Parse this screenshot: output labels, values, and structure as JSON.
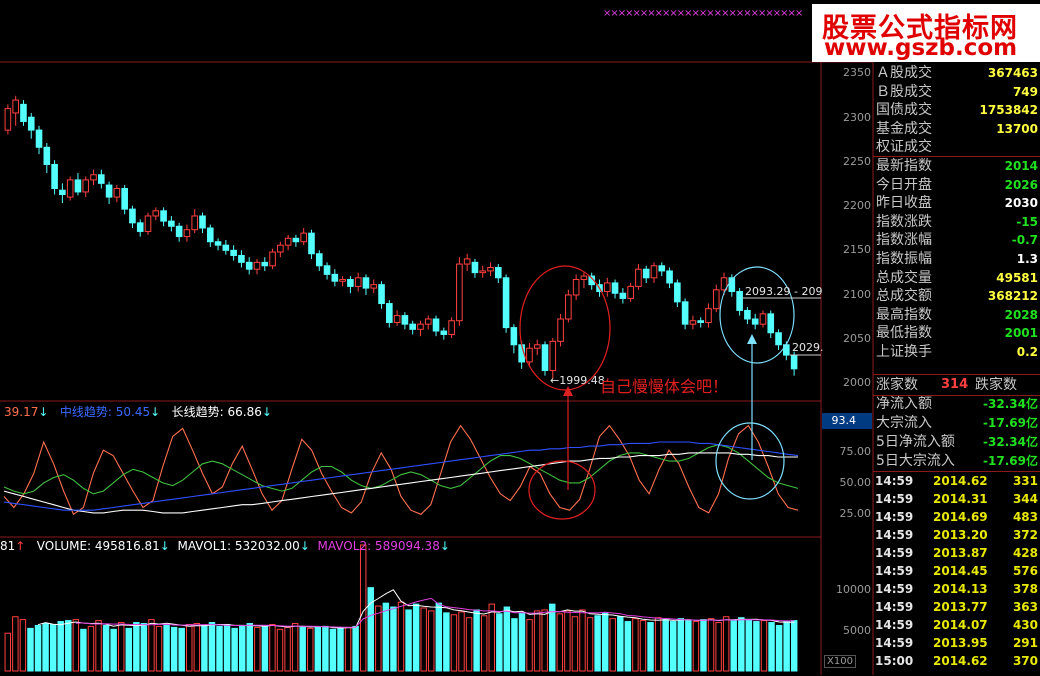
{
  "logo": {
    "line1": "股票公式指标网",
    "line2": "www.gszb.com"
  },
  "top_marker": "×××××××××××××××××××××××××××",
  "price_axis": [
    "2350",
    "2300",
    "2250",
    "2200",
    "2150",
    "2100",
    "2050",
    "2000"
  ],
  "oscillator_axis": [
    "75.00",
    "50.00",
    "25.00"
  ],
  "volume_axis": [
    "10000",
    "5000"
  ],
  "volume_unit": "X100",
  "oscillator_highlight": "93.4",
  "annotations": {
    "low_price": "1999.48",
    "high_range": "2093.29 - 209",
    "last_price": "2029.",
    "comment": "自己慢慢体会吧！"
  },
  "oscillator_labels": {
    "short_value": "39.17",
    "mid_name": "中线趋势:",
    "mid_value": "50.45",
    "long_name": "长线趋势:",
    "long_value": "66.86"
  },
  "volume_labels": {
    "prefix": "81",
    "volume": "VOLUME: 495816.81",
    "mavol1": "MAVOL1: 532032.00",
    "mavol2": "MAVOL2: 589094.38"
  },
  "colors": {
    "up": "#ff4040",
    "down": "#54ffff",
    "short_line": "#ff7050",
    "mid_line": "#40c040",
    "long_line": "#ffffff",
    "blue_line": "#3050ff",
    "magenta": "#e040e0",
    "yellow": "#ffff40",
    "green_val": "#20e020",
    "white_val": "#ffffff"
  },
  "info_panel": [
    {
      "label": "Ａ股成交",
      "value": "367463",
      "color": "#ffff40"
    },
    {
      "label": "Ｂ股成交",
      "value": "749",
      "color": "#ffff40"
    },
    {
      "label": "国债成交",
      "value": "1753842",
      "color": "#ffff40"
    },
    {
      "label": "基金成交",
      "value": "13700",
      "color": "#ffff40"
    },
    {
      "label": "权证成交",
      "value": "",
      "color": "#ffff40"
    },
    {
      "label": "最新指数",
      "value": "2014",
      "color": "#20e020"
    },
    {
      "label": "今日开盘",
      "value": "2026",
      "color": "#20e020"
    },
    {
      "label": "昨日收盘",
      "value": "2030",
      "color": "#ffffff"
    },
    {
      "label": "指数涨跌",
      "value": "-15",
      "color": "#20e020"
    },
    {
      "label": "指数涨幅",
      "value": "-0.7",
      "color": "#20e020"
    },
    {
      "label": "指数振幅",
      "value": "1.3",
      "color": "#ffffff"
    },
    {
      "label": "总成交量",
      "value": "49581",
      "color": "#ffff40"
    },
    {
      "label": "总成交额",
      "value": "368212",
      "color": "#ffff40"
    },
    {
      "label": "最高指数",
      "value": "2028",
      "color": "#20e020"
    },
    {
      "label": "最低指数",
      "value": "2001",
      "color": "#20e020"
    },
    {
      "label": "上证换手",
      "value": "0.2",
      "color": "#ffff40"
    }
  ],
  "breadth": {
    "up_label": "涨家数",
    "up_value": "314",
    "down_label": "跌家数"
  },
  "flows": [
    {
      "label": "净流入额",
      "value": "-32.34亿"
    },
    {
      "label": "大宗流入",
      "value": "-17.69亿"
    },
    {
      "label": "5日净流入额",
      "value": "-32.34亿"
    },
    {
      "label": "5日大宗流入",
      "value": "-17.69亿"
    }
  ],
  "ticks": [
    {
      "time": "14:59",
      "price": "2014.62",
      "vol": "331"
    },
    {
      "time": "14:59",
      "price": "2014.31",
      "vol": "344"
    },
    {
      "time": "14:59",
      "price": "2014.69",
      "vol": "483"
    },
    {
      "time": "14:59",
      "price": "2013.20",
      "vol": "372"
    },
    {
      "time": "14:59",
      "price": "2013.87",
      "vol": "428"
    },
    {
      "time": "14:59",
      "price": "2014.45",
      "vol": "576"
    },
    {
      "time": "14:59",
      "price": "2014.13",
      "vol": "378"
    },
    {
      "time": "14:59",
      "price": "2013.77",
      "vol": "363"
    },
    {
      "time": "14:59",
      "price": "2014.07",
      "vol": "430"
    },
    {
      "time": "14:59",
      "price": "2013.95",
      "vol": "291"
    },
    {
      "time": "15:00",
      "price": "2014.62",
      "vol": "370"
    }
  ],
  "chart_data": {
    "type": "candlestick",
    "price_range": [
      1985,
      2360
    ],
    "oscillator_range": [
      12,
      100
    ],
    "volume_range": [
      0,
      13000
    ],
    "candles": [
      [
        2290,
        2315,
        2285,
        2320
      ],
      [
        2310,
        2325,
        2295,
        2330
      ],
      [
        2320,
        2300,
        2295,
        2325
      ],
      [
        2305,
        2290,
        2280,
        2310
      ],
      [
        2290,
        2270,
        2262,
        2295
      ],
      [
        2270,
        2250,
        2240,
        2275
      ],
      [
        2250,
        2222,
        2215,
        2255
      ],
      [
        2220,
        2215,
        2205,
        2228
      ],
      [
        2212,
        2232,
        2208,
        2236
      ],
      [
        2232,
        2218,
        2214,
        2240
      ],
      [
        2218,
        2232,
        2212,
        2236
      ],
      [
        2232,
        2238,
        2226,
        2244
      ],
      [
        2238,
        2228,
        2222,
        2244
      ],
      [
        2226,
        2212,
        2204,
        2230
      ],
      [
        2212,
        2222,
        2206,
        2226
      ],
      [
        2222,
        2198,
        2192,
        2226
      ],
      [
        2198,
        2182,
        2176,
        2202
      ],
      [
        2182,
        2172,
        2166,
        2186
      ],
      [
        2172,
        2190,
        2168,
        2194
      ],
      [
        2190,
        2196,
        2185,
        2200
      ],
      [
        2196,
        2184,
        2178,
        2200
      ],
      [
        2184,
        2178,
        2172,
        2190
      ],
      [
        2178,
        2166,
        2160,
        2182
      ],
      [
        2166,
        2174,
        2160,
        2180
      ],
      [
        2174,
        2190,
        2170,
        2198
      ],
      [
        2190,
        2176,
        2170,
        2194
      ],
      [
        2176,
        2160,
        2154,
        2180
      ],
      [
        2160,
        2156,
        2150,
        2164
      ],
      [
        2156,
        2150,
        2145,
        2162
      ],
      [
        2150,
        2144,
        2138,
        2156
      ],
      [
        2144,
        2136,
        2130,
        2150
      ],
      [
        2136,
        2128,
        2122,
        2142
      ],
      [
        2128,
        2136,
        2122,
        2140
      ],
      [
        2136,
        2132,
        2126,
        2142
      ],
      [
        2132,
        2148,
        2128,
        2152
      ],
      [
        2148,
        2156,
        2142,
        2160
      ],
      [
        2156,
        2164,
        2150,
        2168
      ],
      [
        2164,
        2160,
        2154,
        2168
      ],
      [
        2160,
        2170,
        2156,
        2176
      ],
      [
        2170,
        2146,
        2140,
        2174
      ],
      [
        2146,
        2132,
        2126,
        2150
      ],
      [
        2132,
        2122,
        2116,
        2136
      ],
      [
        2122,
        2114,
        2108,
        2128
      ],
      [
        2114,
        2116,
        2108,
        2120
      ],
      [
        2116,
        2108,
        2100,
        2120
      ],
      [
        2108,
        2118,
        2102,
        2124
      ],
      [
        2118,
        2106,
        2098,
        2122
      ],
      [
        2106,
        2110,
        2100,
        2116
      ],
      [
        2110,
        2088,
        2082,
        2114
      ],
      [
        2088,
        2066,
        2060,
        2092
      ],
      [
        2066,
        2074,
        2062,
        2080
      ],
      [
        2074,
        2064,
        2058,
        2078
      ],
      [
        2064,
        2058,
        2052,
        2068
      ],
      [
        2058,
        2064,
        2050,
        2068
      ],
      [
        2064,
        2070,
        2058,
        2074
      ],
      [
        2070,
        2056,
        2050,
        2074
      ],
      [
        2056,
        2052,
        2046,
        2060
      ],
      [
        2052,
        2068,
        2048,
        2072
      ],
      [
        2068,
        2134,
        2062,
        2142
      ],
      [
        2134,
        2140,
        2126,
        2146
      ],
      [
        2136,
        2124,
        2118,
        2140
      ],
      [
        2124,
        2126,
        2118,
        2132
      ],
      [
        2126,
        2130,
        2120,
        2136
      ],
      [
        2130,
        2118,
        2112,
        2134
      ],
      [
        2118,
        2060,
        2054,
        2122
      ],
      [
        2060,
        2040,
        2030,
        2064
      ],
      [
        2040,
        2020,
        2012,
        2044
      ],
      [
        2020,
        2036,
        2014,
        2042
      ],
      [
        2036,
        2040,
        2028,
        2046
      ],
      [
        2040,
        2010,
        2004,
        2044
      ],
      [
        2010,
        2044,
        2000,
        2048
      ],
      [
        2044,
        2070,
        2038,
        2076
      ],
      [
        2070,
        2098,
        2066,
        2104
      ],
      [
        2098,
        2116,
        2092,
        2122
      ],
      [
        2116,
        2120,
        2106,
        2124
      ],
      [
        2120,
        2110,
        2104,
        2124
      ],
      [
        2110,
        2102,
        2096,
        2116
      ],
      [
        2102,
        2112,
        2096,
        2118
      ],
      [
        2112,
        2100,
        2094,
        2116
      ],
      [
        2100,
        2094,
        2088,
        2106
      ],
      [
        2094,
        2108,
        2090,
        2112
      ],
      [
        2108,
        2128,
        2104,
        2134
      ],
      [
        2128,
        2118,
        2112,
        2132
      ],
      [
        2118,
        2132,
        2112,
        2136
      ],
      [
        2132,
        2126,
        2120,
        2136
      ],
      [
        2126,
        2112,
        2106,
        2130
      ],
      [
        2112,
        2090,
        2084,
        2116
      ],
      [
        2090,
        2064,
        2058,
        2094
      ],
      [
        2064,
        2068,
        2058,
        2074
      ],
      [
        2068,
        2066,
        2060,
        2072
      ],
      [
        2066,
        2082,
        2060,
        2088
      ],
      [
        2082,
        2104,
        2078,
        2110
      ],
      [
        2104,
        2118,
        2098,
        2124
      ],
      [
        2118,
        2102,
        2096,
        2122
      ],
      [
        2102,
        2080,
        2074,
        2106
      ],
      [
        2080,
        2070,
        2064,
        2084
      ],
      [
        2070,
        2064,
        2058,
        2076
      ],
      [
        2064,
        2076,
        2060,
        2080
      ],
      [
        2076,
        2054,
        2048,
        2080
      ],
      [
        2054,
        2040,
        2034,
        2058
      ],
      [
        2040,
        2028,
        2022,
        2044
      ],
      [
        2028,
        2012,
        2004,
        2032
      ]
    ],
    "oscillator_series": [
      {
        "name": "",
        "values": [
          38,
          30,
          40,
          55,
          78,
          62,
          42,
          25,
          30,
          55,
          72,
          68,
          55,
          42,
          30,
          35,
          60,
          82,
          88,
          72,
          55,
          40,
          45,
          62,
          75,
          58,
          40,
          28,
          35,
          58,
          80,
          72,
          55,
          42,
          30,
          26,
          34,
          55,
          70,
          58,
          38,
          28,
          25,
          32,
          55,
          78,
          90,
          80,
          66,
          52,
          40,
          35,
          45,
          60,
          55,
          40,
          30,
          28,
          36,
          58,
          82,
          90,
          80,
          68,
          50,
          40,
          58,
          72,
          62,
          45,
          30,
          26,
          40,
          66,
          84,
          90,
          78,
          60,
          40,
          30,
          28
        ]
      },
      {
        "name": "中线趋势",
        "values": [
          45,
          42,
          40,
          42,
          48,
          52,
          54,
          50,
          44,
          40,
          42,
          48,
          54,
          58,
          56,
          52,
          48,
          46,
          50,
          56,
          62,
          64,
          62,
          58,
          54,
          50,
          46,
          44,
          42,
          44,
          50,
          56,
          60,
          60,
          56,
          50,
          46,
          44,
          46,
          50,
          54,
          56,
          54,
          50,
          46,
          44,
          46,
          52,
          58,
          64,
          68,
          68,
          66,
          62,
          58,
          54,
          50,
          48,
          48,
          52,
          58,
          64,
          68,
          70,
          70,
          68,
          66,
          64,
          64,
          66,
          70,
          74,
          76,
          74,
          70,
          64,
          58,
          52,
          48,
          46,
          44
        ]
      },
      {
        "name": "长线趋势",
        "values": [
          42,
          40,
          38,
          36,
          34,
          32,
          30,
          28,
          27,
          26,
          26,
          27,
          28,
          28,
          28,
          27,
          26,
          26,
          26,
          27,
          28,
          29,
          30,
          31,
          32,
          32,
          33,
          34,
          35,
          36,
          37,
          38,
          39,
          40,
          41,
          42,
          43,
          44,
          45,
          46,
          47,
          48,
          49,
          50,
          51,
          52,
          53,
          54,
          55,
          56,
          57,
          58,
          59,
          60,
          61,
          62,
          63,
          64,
          64,
          65,
          66,
          66,
          67,
          67,
          68,
          68,
          68,
          69,
          69,
          70,
          70,
          70,
          70,
          70,
          69,
          69,
          68,
          68,
          67,
          67,
          67
        ]
      },
      {
        "name": "",
        "values": [
          34,
          33,
          32,
          31,
          30,
          29,
          28,
          28,
          28,
          28,
          29,
          30,
          31,
          32,
          33,
          34,
          35,
          36,
          37,
          38,
          39,
          40,
          41,
          42,
          43,
          44,
          45,
          46,
          47,
          48,
          49,
          50,
          51,
          52,
          53,
          54,
          55,
          56,
          57,
          58,
          59,
          60,
          61,
          62,
          63,
          64,
          65,
          66,
          67,
          68,
          69,
          70,
          71,
          72,
          72,
          73,
          73,
          74,
          74,
          75,
          75,
          76,
          76,
          77,
          77,
          77,
          78,
          78,
          78,
          78,
          77,
          77,
          76,
          75,
          74,
          73,
          72,
          71,
          70,
          69,
          68
        ]
      }
    ],
    "volume": [
      3900,
      5600,
      5300,
      4400,
      4700,
      4900,
      4800,
      5100,
      5200,
      5300,
      4300,
      4600,
      5200,
      4700,
      4300,
      5000,
      4400,
      5000,
      4900,
      5300,
      4600,
      4800,
      4500,
      4400,
      4800,
      4900,
      4700,
      5000,
      4600,
      4800,
      4400,
      4700,
      4900,
      4500,
      4600,
      4800,
      4300,
      4500,
      4900,
      4600,
      4400,
      4500,
      4600,
      4300,
      4400,
      4500,
      4600,
      13000,
      8600,
      6700,
      7000,
      6600,
      7100,
      6300,
      6900,
      6500,
      6200,
      7000,
      6000,
      5800,
      6100,
      5500,
      6300,
      5700,
      6900,
      5900,
      6600,
      5400,
      6000,
      5300,
      6200,
      6300,
      6900,
      5900,
      6200,
      5600,
      6300,
      5500,
      5700,
      6000,
      5400,
      5600,
      5100,
      5400,
      5200,
      5000,
      5500,
      5300,
      5100,
      5400,
      5200,
      5100,
      5300,
      5400,
      5000,
      5600,
      5200,
      5500,
      5300,
      5100,
      5200,
      5000,
      4700,
      5100,
      5200
    ]
  }
}
